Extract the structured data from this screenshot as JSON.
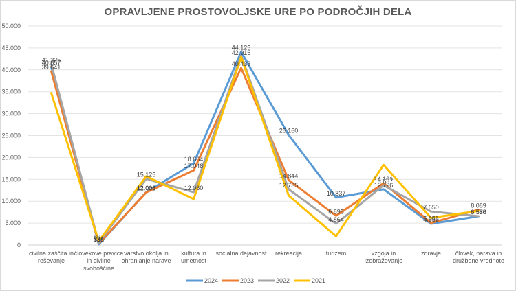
{
  "chart_data": {
    "type": "line",
    "title": "OPRAVLJENE PROSTOVOLJSKE URE PO PODROČJIH DELA",
    "xlabel": "",
    "ylabel": "",
    "ylim": [
      0,
      50000
    ],
    "yticks": [
      0,
      5000,
      10000,
      15000,
      20000,
      25000,
      30000,
      35000,
      40000,
      45000,
      50000
    ],
    "ytick_labels": [
      "0",
      "5.000",
      "10.000",
      "15.000",
      "20.000",
      "25.000",
      "30.000",
      "35.000",
      "40.000",
      "45.000",
      "50.000"
    ],
    "grid": true,
    "legend_position": "bottom",
    "categories": [
      [
        "civilna zaščita in",
        "reševanje"
      ],
      [
        "človekove pravice",
        "in civilne",
        "svoboščine"
      ],
      [
        "varstvo okolja in",
        "ohranjanje narave"
      ],
      [
        "kultura in",
        "umetnost"
      ],
      [
        "socialna dejavnost"
      ],
      [
        "rekreacija"
      ],
      [
        "turizem"
      ],
      [
        "vzgoja in",
        "izobraževanje"
      ],
      [
        "zdravje"
      ],
      [
        "človek, narava in",
        "družbene vrednote"
      ]
    ],
    "series": [
      {
        "name": "2024",
        "color": "#5B9BD5",
        "values": [
          40657,
          146,
          12066,
          18664,
          44125,
          25160,
          10837,
          12726,
          4856,
          6570
        ],
        "labels": [
          "40.657",
          "146",
          "12.066",
          "18.664",
          "44.125",
          "25.160",
          "10.837",
          "12.726",
          "4.856",
          "6.570"
        ]
      },
      {
        "name": "2023",
        "color": "#ED7D31",
        "values": [
          39641,
          336,
          12006,
          17048,
          40433,
          14844,
          6695,
          14101,
          5056,
          8069
        ],
        "labels": [
          "39.641",
          "336",
          "12.006",
          "17.048",
          "40.433",
          "14.844",
          "6.695",
          "14.101",
          "5.056",
          "8.069"
        ]
      },
      {
        "name": "2022",
        "color": "#A5A5A5",
        "values": [
          41325,
          500,
          15125,
          12060,
          43300,
          12735,
          4864,
          13637,
          7650,
          6588
        ],
        "labels": [
          "41.325",
          "",
          "15.125",
          "12.060",
          "",
          "12.735",
          "4.864",
          "13.637",
          "7.650",
          "6.588"
        ]
      },
      {
        "name": "2021",
        "color": "#FFC000",
        "values": [
          34700,
          867,
          15700,
          10500,
          42915,
          11300,
          2000,
          18300,
          6200,
          7800
        ],
        "labels": [
          "",
          "867",
          "",
          "",
          "42.915",
          "",
          "",
          "",
          "",
          ""
        ]
      }
    ]
  }
}
